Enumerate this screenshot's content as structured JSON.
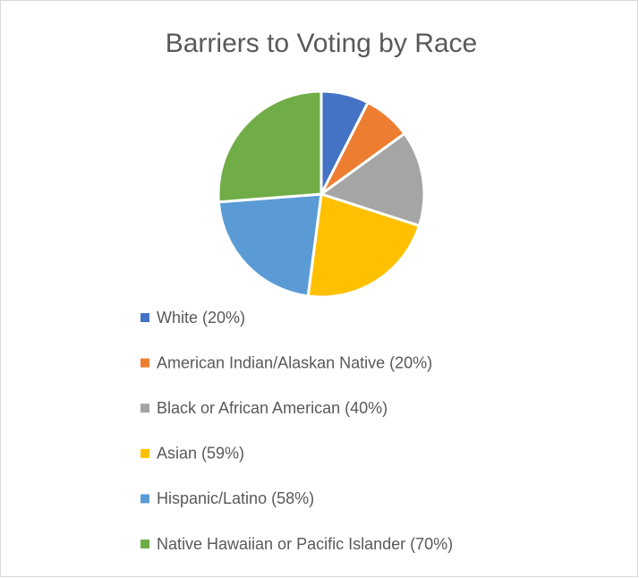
{
  "chart_data": {
    "type": "pie",
    "title": "Barriers to Voting by Race",
    "categories": [
      "White (20%)",
      "American Indian/Alaskan Native (20%)",
      "Black or African American (40%)",
      "Asian (59%)",
      "Hispanic/Latino (58%)",
      "Native Hawaiian or Pacific Islander (70%)"
    ],
    "values": [
      20,
      20,
      40,
      59,
      58,
      70
    ],
    "colors": [
      "#4472c4",
      "#ed7d31",
      "#a5a5a5",
      "#ffc000",
      "#5b9bd5",
      "#70ad47"
    ],
    "legend": "bottom"
  }
}
